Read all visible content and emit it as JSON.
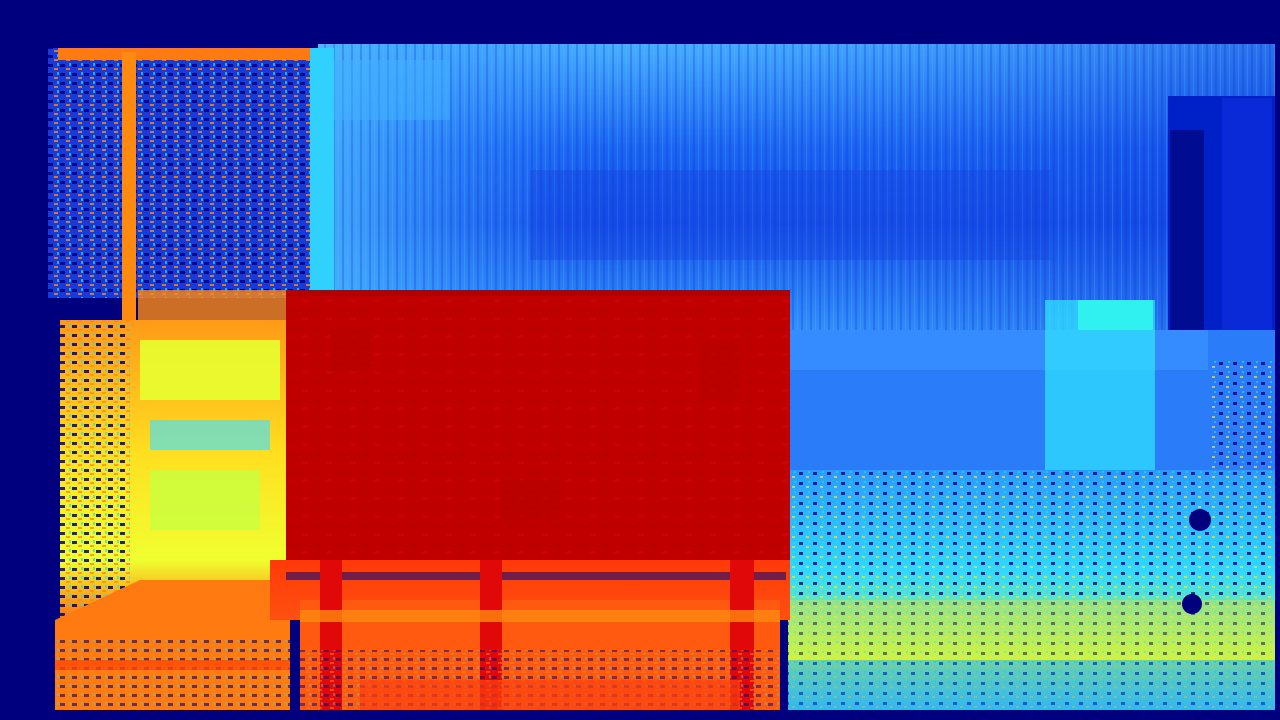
{
  "image": {
    "kind": "depth-map",
    "colormap": "jet",
    "colors": {
      "far": "#00007f",
      "deep_blue": "#0020d0",
      "blue": "#1a5cf0",
      "light_blue": "#3aa0ff",
      "cyan": "#20e0ff",
      "yellow": "#e8ff20",
      "orange": "#ff8a10",
      "red_orange": "#ff4a08",
      "near": "#c00000"
    },
    "objects": [
      {
        "name": "bench",
        "depth_level": "nearest",
        "color": "#c00000"
      },
      {
        "name": "left-doorway",
        "depth_level": "near",
        "color": "#ff8a10"
      },
      {
        "name": "back-wall",
        "depth_level": "far",
        "color": "#1a5cf0"
      },
      {
        "name": "floor",
        "depth_level": "mid",
        "color": "#3aa0ff"
      },
      {
        "name": "right-pillar",
        "depth_level": "farthest",
        "color": "#0020d0"
      }
    ]
  }
}
